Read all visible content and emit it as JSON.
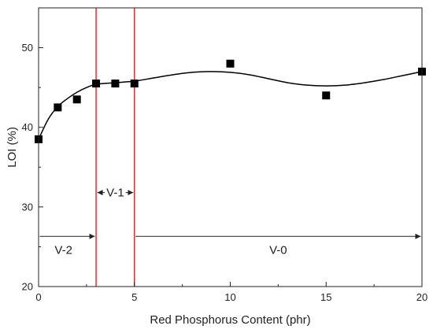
{
  "chart_data": {
    "type": "scatter",
    "xlabel": "Red Phosphorus Content  (phr)",
    "ylabel": "LOI (%)",
    "xlim": [
      0,
      20
    ],
    "ylim": [
      20,
      55
    ],
    "x_ticks": [
      0,
      5,
      10,
      15,
      20
    ],
    "y_ticks": [
      20,
      30,
      40,
      50
    ],
    "grid": false,
    "series": [
      {
        "marker": "square",
        "color": "#000000",
        "x": [
          0,
          1,
          2,
          3,
          4,
          5,
          10,
          15,
          20
        ],
        "y": [
          38.5,
          42.5,
          43.5,
          45.5,
          45.5,
          45.5,
          48,
          44,
          47
        ]
      }
    ],
    "fit_curve": {
      "color": "#000000",
      "x": [
        0,
        0.5,
        1,
        1.5,
        2,
        2.5,
        3,
        4,
        5,
        6,
        7,
        8,
        9,
        10,
        11,
        12,
        13,
        14,
        15,
        16,
        17,
        18,
        19,
        20
      ],
      "y": [
        38.5,
        41.0,
        42.6,
        43.6,
        44.4,
        45.0,
        45.4,
        45.6,
        45.8,
        46.2,
        46.6,
        46.9,
        47.0,
        46.9,
        46.6,
        46.1,
        45.6,
        45.3,
        45.2,
        45.3,
        45.6,
        46.0,
        46.5,
        47.0
      ]
    },
    "reference_lines": [
      {
        "x": 3,
        "color": "#dd3333"
      },
      {
        "x": 5,
        "color": "#dd3333"
      }
    ],
    "zones": [
      {
        "label": "V-2",
        "x_start": 0,
        "x_end": 3,
        "arrow_y": 26.3,
        "label_x": 1.3,
        "label_y": 24.6
      },
      {
        "label": "V-1",
        "x_start": 3,
        "x_end": 5,
        "arrow_y": 31.8,
        "label_x": 4.0,
        "label_y": 31.8
      },
      {
        "label": "V-0",
        "x_start": 5,
        "x_end": 20,
        "arrow_y": 26.3,
        "label_x": 12.5,
        "label_y": 24.6
      }
    ]
  }
}
